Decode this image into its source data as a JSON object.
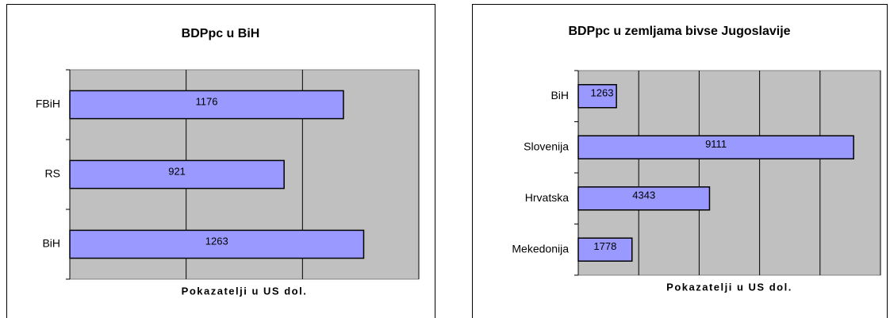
{
  "chart_data": [
    {
      "type": "bar",
      "title": "BDPpc u BiH",
      "x_label": "Pokazatelji u US dol.",
      "categories": [
        "FBiH",
        "RS",
        "BiH"
      ],
      "values": [
        1176,
        921,
        1263
      ],
      "color": "#9999ff",
      "xlim": [
        0,
        1500
      ],
      "xticks": [
        0,
        500,
        1000,
        1500
      ],
      "grid": true
    },
    {
      "type": "bar",
      "title": "BDPpc u zemljama bivse Jugoslavije",
      "x_label": "Pokazatelji u US dol.",
      "categories": [
        "BiH",
        "Slovenija",
        "Hrvatska",
        "Mekedonija"
      ],
      "values": [
        1263,
        9111,
        4343,
        1778
      ],
      "color": "#9999ff",
      "xlim": [
        0,
        10000
      ],
      "xticks": [
        0,
        2000,
        4000,
        6000,
        8000,
        10000
      ],
      "grid": true
    }
  ]
}
